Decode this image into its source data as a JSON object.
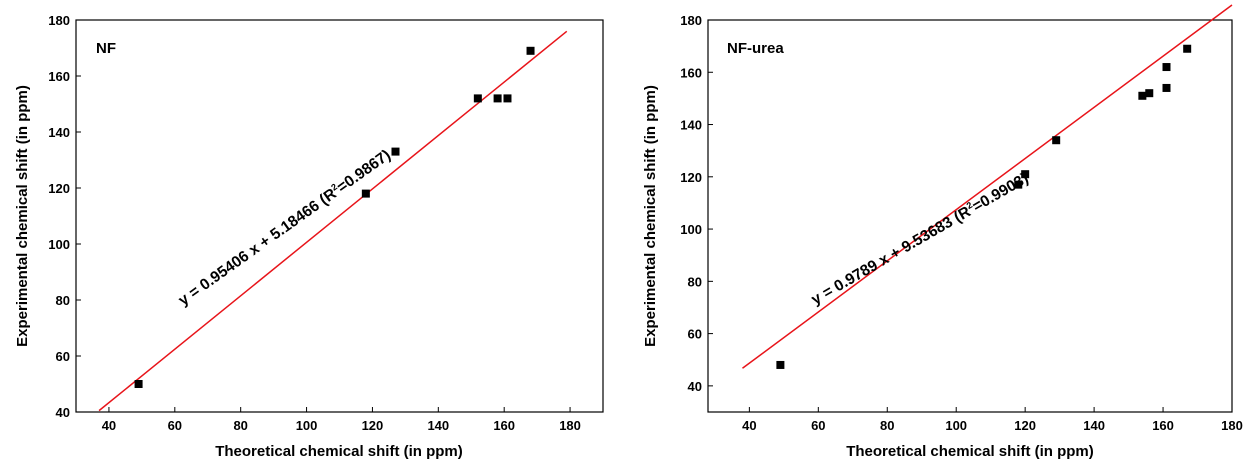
{
  "chart_data": [
    {
      "type": "scatter",
      "panel_label": "NF",
      "xlabel": "Theoretical chemical shift (in ppm)",
      "ylabel": "Experimental chemical shift (in ppm)",
      "xlim": [
        30,
        190
      ],
      "ylim": [
        40,
        180
      ],
      "xticks": [
        "40",
        "60",
        "80",
        "100",
        "120",
        "140",
        "160",
        "180"
      ],
      "yticks": [
        "40",
        "60",
        "80",
        "100",
        "120",
        "140",
        "160",
        "180"
      ],
      "points": [
        {
          "x": 49,
          "y": 50
        },
        {
          "x": 118,
          "y": 118
        },
        {
          "x": 127,
          "y": 133
        },
        {
          "x": 152,
          "y": 152
        },
        {
          "x": 158,
          "y": 152
        },
        {
          "x": 161,
          "y": 152
        },
        {
          "x": 168,
          "y": 169
        }
      ],
      "fit": {
        "slope": 0.95406,
        "intercept": 5.18466,
        "x_range": [
          37,
          179
        ]
      },
      "equation": {
        "prefix": "y = 0.95406 x + 5.18466 (R",
        "sup": "2",
        "suffix": "=0.9867)"
      },
      "line_color": "#e8141a",
      "marker_color": "#000000"
    },
    {
      "type": "scatter",
      "panel_label": "NF-urea",
      "xlabel": "Theoretical chemical shift (in ppm)",
      "ylabel": "Experimental chemical shift (in ppm)",
      "xlim": [
        28,
        180
      ],
      "ylim": [
        30,
        180
      ],
      "xticks": [
        "40",
        "60",
        "80",
        "100",
        "120",
        "140",
        "160",
        "180"
      ],
      "yticks": [
        "40",
        "60",
        "80",
        "100",
        "120",
        "140",
        "160",
        "180"
      ],
      "points": [
        {
          "x": 49,
          "y": 48
        },
        {
          "x": 118,
          "y": 117
        },
        {
          "x": 120,
          "y": 121
        },
        {
          "x": 129,
          "y": 134
        },
        {
          "x": 154,
          "y": 151
        },
        {
          "x": 156,
          "y": 152
        },
        {
          "x": 161,
          "y": 154
        },
        {
          "x": 161,
          "y": 162
        },
        {
          "x": 167,
          "y": 169
        }
      ],
      "fit": {
        "slope": 0.9789,
        "intercept": 9.53683,
        "x_range": [
          38,
          180
        ]
      },
      "equation": {
        "prefix": "y = 0.9789 x + 9.53683 (R",
        "sup": "2",
        "suffix": "=0.9903)"
      },
      "line_color": "#e8141a",
      "marker_color": "#000000"
    }
  ]
}
